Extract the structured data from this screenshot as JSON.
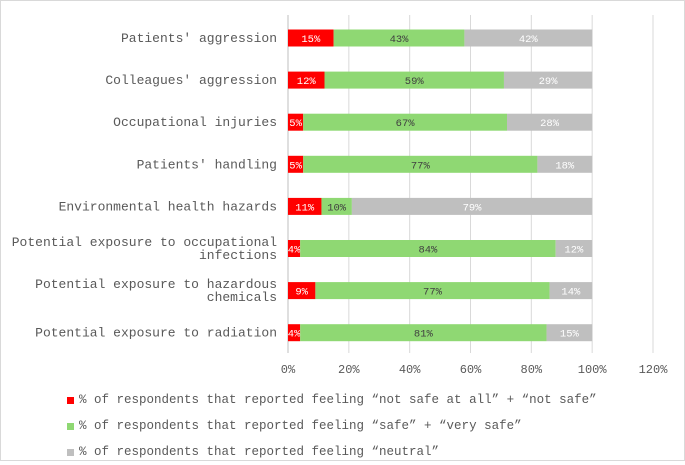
{
  "chart_data": {
    "type": "bar",
    "orientation": "horizontal",
    "stacked": true,
    "categories": [
      [
        "Patients' aggression"
      ],
      [
        "Colleagues' aggression"
      ],
      [
        "Occupational injuries"
      ],
      [
        "Patients' handling"
      ],
      [
        "Environmental health hazards"
      ],
      [
        "Potential exposure to occupational",
        "infections"
      ],
      [
        "Potential exposure to hazardous",
        "chemicals"
      ],
      [
        "Potential exposure to radiation"
      ]
    ],
    "series": [
      {
        "name": "% of respondents that reported feeling “not safe at all” + “not safe”",
        "color": "#ff0000",
        "label_color": "#ffffff",
        "values": [
          15,
          12,
          5,
          5,
          11,
          4,
          9,
          4
        ],
        "labels": [
          "15%",
          "12%",
          "5%",
          "5%",
          "11%",
          "4%",
          "9%",
          "4%"
        ]
      },
      {
        "name": "% of respondents that reported feeling “safe” + “very safe”",
        "color": "#8fd873",
        "label_color": "#404040",
        "values": [
          43,
          59,
          67,
          77,
          10,
          84,
          77,
          81
        ],
        "labels": [
          "43%",
          "59%",
          "67%",
          "77%",
          "10%",
          "84%",
          "77%",
          "81%"
        ]
      },
      {
        "name": "% of respondents that reported feeling “neutral”",
        "color": "#bfbfbf",
        "label_color": "#ffffff",
        "values": [
          42,
          29,
          28,
          18,
          79,
          12,
          14,
          15
        ],
        "labels": [
          "42%",
          "29%",
          "28%",
          "18%",
          "79%",
          "12%",
          "14%",
          "15%"
        ]
      }
    ],
    "xlim": [
      0,
      120
    ],
    "xticks": [
      0,
      20,
      40,
      60,
      80,
      100,
      120
    ],
    "xtick_labels": [
      "0%",
      "20%",
      "40%",
      "60%",
      "80%",
      "100%",
      "120%"
    ],
    "grid": "vertical",
    "legend_position": "bottom-left"
  }
}
